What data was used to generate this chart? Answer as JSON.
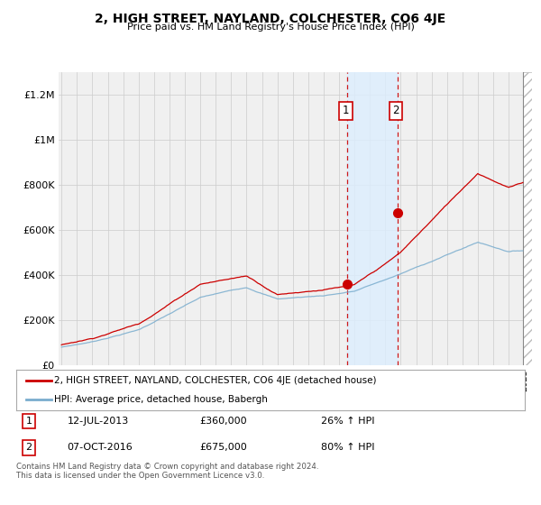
{
  "title": "2, HIGH STREET, NAYLAND, COLCHESTER, CO6 4JE",
  "subtitle": "Price paid vs. HM Land Registry's House Price Index (HPI)",
  "legend_label_red": "2, HIGH STREET, NAYLAND, COLCHESTER, CO6 4JE (detached house)",
  "legend_label_blue": "HPI: Average price, detached house, Babergh",
  "annotation1_label": "1",
  "annotation1_date": "12-JUL-2013",
  "annotation1_price": "£360,000",
  "annotation1_hpi": "26% ↑ HPI",
  "annotation2_label": "2",
  "annotation2_date": "07-OCT-2016",
  "annotation2_price": "£675,000",
  "annotation2_hpi": "80% ↑ HPI",
  "footer": "Contains HM Land Registry data © Crown copyright and database right 2024.\nThis data is licensed under the Open Government Licence v3.0.",
  "ylim": [
    0,
    1300000
  ],
  "yticks": [
    0,
    200000,
    400000,
    600000,
    800000,
    1000000,
    1200000
  ],
  "ytick_labels": [
    "£0",
    "£200K",
    "£400K",
    "£600K",
    "£800K",
    "£1M",
    "£1.2M"
  ],
  "red_color": "#cc0000",
  "blue_color": "#7aadce",
  "background_color": "#ffffff",
  "plot_bg_color": "#f0f0f0",
  "shade_color": "#ddeeff",
  "sale1_x": 2013.53,
  "sale1_y": 360000,
  "sale2_x": 2016.77,
  "sale2_y": 675000,
  "xmin": 1994.8,
  "xmax": 2025.5
}
